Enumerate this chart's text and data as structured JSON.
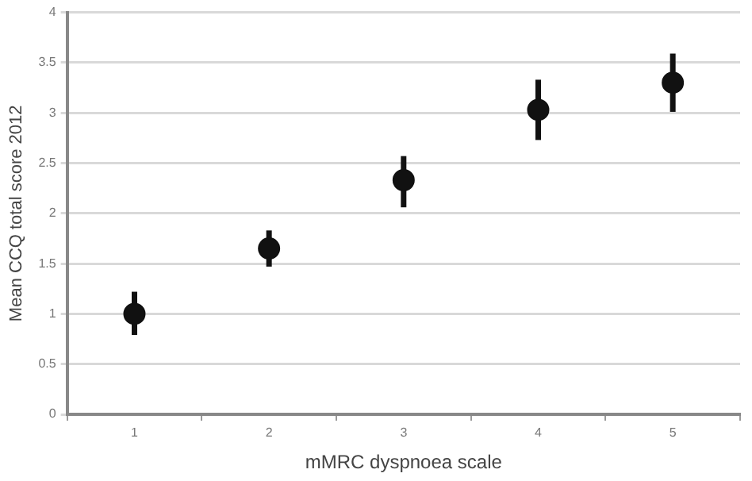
{
  "chart_data": {
    "type": "scatter",
    "xlabel": "mMRC dyspnoea scale",
    "ylabel": "Mean CCQ total score 2012",
    "categories": [
      "1",
      "2",
      "3",
      "4",
      "5"
    ],
    "series": [
      {
        "color": "#111111",
        "values": [
          1.0,
          1.65,
          2.33,
          3.03,
          3.3
        ],
        "errors": [
          [
            0.79,
            1.22
          ],
          [
            1.47,
            1.83
          ],
          [
            2.06,
            2.57
          ],
          [
            2.73,
            3.33
          ],
          [
            3.01,
            3.59
          ]
        ]
      }
    ],
    "ylim": [
      0,
      4
    ],
    "yticks": [
      0,
      0.5,
      1,
      1.5,
      2,
      2.5,
      3,
      3.5,
      4
    ],
    "grid": "y",
    "legend": false,
    "marker": "circle"
  }
}
